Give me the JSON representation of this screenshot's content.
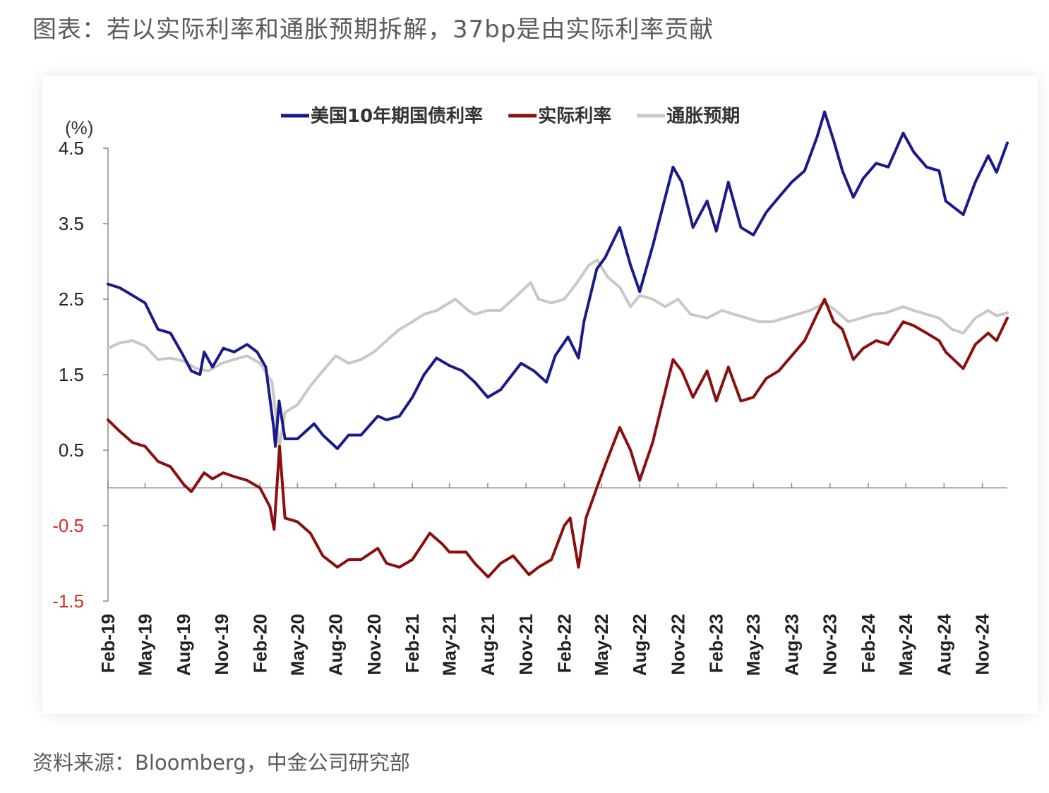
{
  "page": {
    "title": "图表：若以实际利率和通胀预期拆解，37bp是由实际利率贡献",
    "source": "资料来源：Bloomberg，中金公司研究部"
  },
  "chart_data": {
    "type": "line",
    "unit_label": "(%)",
    "ylim": [
      -1.5,
      4.5
    ],
    "y_ticks": [
      "4.5",
      "3.5",
      "2.5",
      "1.5",
      "0.5",
      "-0.5",
      "-1.5"
    ],
    "x_tick_labels": [
      "Feb-19",
      "May-19",
      "Aug-19",
      "Nov-19",
      "Feb-20",
      "May-20",
      "Aug-20",
      "Nov-20",
      "Feb-21",
      "May-21",
      "Aug-21",
      "Nov-21",
      "Feb-22",
      "May-22",
      "Aug-22",
      "Nov-22",
      "Feb-23",
      "May-23",
      "Aug-23",
      "Nov-23",
      "Feb-24",
      "May-24",
      "Aug-24",
      "Nov-24"
    ],
    "legend_position": "top-center",
    "grid": false,
    "colors": {
      "nominal": "#1a1a8c",
      "real": "#8b0f0f",
      "breakeven": "#c8c8c8",
      "negative_tick": "#d62b2b",
      "positive_tick": "#222222"
    },
    "series": [
      {
        "key": "nominal",
        "name": "美国10年期国债利率",
        "points": [
          [
            "2019-02-01",
            2.7
          ],
          [
            "2019-03-01",
            2.65
          ],
          [
            "2019-04-01",
            2.55
          ],
          [
            "2019-05-01",
            2.45
          ],
          [
            "2019-06-01",
            2.1
          ],
          [
            "2019-07-01",
            2.05
          ],
          [
            "2019-08-01",
            1.75
          ],
          [
            "2019-08-20",
            1.55
          ],
          [
            "2019-09-10",
            1.5
          ],
          [
            "2019-09-20",
            1.8
          ],
          [
            "2019-10-10",
            1.6
          ],
          [
            "2019-11-05",
            1.85
          ],
          [
            "2019-12-01",
            1.8
          ],
          [
            "2020-01-01",
            1.9
          ],
          [
            "2020-01-25",
            1.8
          ],
          [
            "2020-02-15",
            1.6
          ],
          [
            "2020-03-05",
            0.8
          ],
          [
            "2020-03-09",
            0.55
          ],
          [
            "2020-03-18",
            1.15
          ],
          [
            "2020-04-01",
            0.65
          ],
          [
            "2020-05-01",
            0.65
          ],
          [
            "2020-06-10",
            0.85
          ],
          [
            "2020-07-01",
            0.7
          ],
          [
            "2020-08-05",
            0.52
          ],
          [
            "2020-09-01",
            0.7
          ],
          [
            "2020-10-01",
            0.7
          ],
          [
            "2020-11-10",
            0.95
          ],
          [
            "2020-12-01",
            0.9
          ],
          [
            "2021-01-01",
            0.95
          ],
          [
            "2021-02-01",
            1.2
          ],
          [
            "2021-03-01",
            1.5
          ],
          [
            "2021-03-31",
            1.72
          ],
          [
            "2021-05-01",
            1.62
          ],
          [
            "2021-06-01",
            1.55
          ],
          [
            "2021-07-01",
            1.4
          ],
          [
            "2021-08-01",
            1.2
          ],
          [
            "2021-09-01",
            1.3
          ],
          [
            "2021-10-20",
            1.65
          ],
          [
            "2021-11-20",
            1.55
          ],
          [
            "2021-12-20",
            1.4
          ],
          [
            "2022-01-10",
            1.75
          ],
          [
            "2022-02-10",
            2.0
          ],
          [
            "2022-03-07",
            1.72
          ],
          [
            "2022-03-20",
            2.2
          ],
          [
            "2022-04-20",
            2.9
          ],
          [
            "2022-05-10",
            3.05
          ],
          [
            "2022-06-14",
            3.45
          ],
          [
            "2022-07-10",
            2.95
          ],
          [
            "2022-08-01",
            2.6
          ],
          [
            "2022-09-01",
            3.2
          ],
          [
            "2022-10-20",
            4.25
          ],
          [
            "2022-11-10",
            4.05
          ],
          [
            "2022-12-07",
            3.45
          ],
          [
            "2023-01-10",
            3.8
          ],
          [
            "2023-02-01",
            3.4
          ],
          [
            "2023-03-02",
            4.05
          ],
          [
            "2023-04-01",
            3.45
          ],
          [
            "2023-05-01",
            3.35
          ],
          [
            "2023-06-01",
            3.65
          ],
          [
            "2023-07-01",
            3.85
          ],
          [
            "2023-08-01",
            4.05
          ],
          [
            "2023-09-01",
            4.2
          ],
          [
            "2023-10-01",
            4.65
          ],
          [
            "2023-10-19",
            4.98
          ],
          [
            "2023-11-10",
            4.6
          ],
          [
            "2023-12-01",
            4.2
          ],
          [
            "2023-12-27",
            3.85
          ],
          [
            "2024-01-20",
            4.1
          ],
          [
            "2024-02-20",
            4.3
          ],
          [
            "2024-03-20",
            4.25
          ],
          [
            "2024-04-25",
            4.7
          ],
          [
            "2024-05-20",
            4.45
          ],
          [
            "2024-06-20",
            4.25
          ],
          [
            "2024-07-20",
            4.2
          ],
          [
            "2024-08-05",
            3.8
          ],
          [
            "2024-09-16",
            3.62
          ],
          [
            "2024-10-15",
            4.05
          ],
          [
            "2024-11-15",
            4.4
          ],
          [
            "2024-12-05",
            4.18
          ],
          [
            "2024-12-31",
            4.57
          ]
        ]
      },
      {
        "key": "real",
        "name": "实际利率",
        "points": [
          [
            "2019-02-01",
            0.9
          ],
          [
            "2019-03-01",
            0.75
          ],
          [
            "2019-04-01",
            0.6
          ],
          [
            "2019-05-01",
            0.55
          ],
          [
            "2019-06-01",
            0.35
          ],
          [
            "2019-07-01",
            0.28
          ],
          [
            "2019-08-01",
            0.05
          ],
          [
            "2019-08-20",
            -0.05
          ],
          [
            "2019-09-20",
            0.2
          ],
          [
            "2019-10-10",
            0.12
          ],
          [
            "2019-11-05",
            0.2
          ],
          [
            "2019-12-01",
            0.15
          ],
          [
            "2020-01-01",
            0.1
          ],
          [
            "2020-02-01",
            0.0
          ],
          [
            "2020-02-25",
            -0.25
          ],
          [
            "2020-03-06",
            -0.55
          ],
          [
            "2020-03-19",
            0.55
          ],
          [
            "2020-04-01",
            -0.4
          ],
          [
            "2020-05-01",
            -0.45
          ],
          [
            "2020-06-01",
            -0.6
          ],
          [
            "2020-07-01",
            -0.9
          ],
          [
            "2020-08-05",
            -1.05
          ],
          [
            "2020-09-01",
            -0.95
          ],
          [
            "2020-10-01",
            -0.95
          ],
          [
            "2020-11-10",
            -0.8
          ],
          [
            "2020-12-01",
            -1.0
          ],
          [
            "2021-01-01",
            -1.05
          ],
          [
            "2021-02-01",
            -0.95
          ],
          [
            "2021-03-15",
            -0.6
          ],
          [
            "2021-04-15",
            -0.75
          ],
          [
            "2021-05-01",
            -0.85
          ],
          [
            "2021-06-10",
            -0.85
          ],
          [
            "2021-07-01",
            -1.0
          ],
          [
            "2021-08-02",
            -1.18
          ],
          [
            "2021-09-01",
            -1.0
          ],
          [
            "2021-10-01",
            -0.9
          ],
          [
            "2021-11-08",
            -1.15
          ],
          [
            "2021-12-01",
            -1.05
          ],
          [
            "2022-01-01",
            -0.95
          ],
          [
            "2022-02-01",
            -0.5
          ],
          [
            "2022-02-15",
            -0.4
          ],
          [
            "2022-03-07",
            -1.05
          ],
          [
            "2022-03-25",
            -0.4
          ],
          [
            "2022-04-20",
            0.0
          ],
          [
            "2022-05-10",
            0.3
          ],
          [
            "2022-06-14",
            0.8
          ],
          [
            "2022-07-10",
            0.5
          ],
          [
            "2022-08-01",
            0.1
          ],
          [
            "2022-09-01",
            0.6
          ],
          [
            "2022-10-20",
            1.7
          ],
          [
            "2022-11-10",
            1.55
          ],
          [
            "2022-12-07",
            1.2
          ],
          [
            "2023-01-10",
            1.55
          ],
          [
            "2023-02-01",
            1.15
          ],
          [
            "2023-03-02",
            1.6
          ],
          [
            "2023-04-01",
            1.15
          ],
          [
            "2023-05-01",
            1.2
          ],
          [
            "2023-06-01",
            1.45
          ],
          [
            "2023-07-01",
            1.55
          ],
          [
            "2023-08-01",
            1.75
          ],
          [
            "2023-09-01",
            1.95
          ],
          [
            "2023-10-01",
            2.3
          ],
          [
            "2023-10-19",
            2.5
          ],
          [
            "2023-11-10",
            2.2
          ],
          [
            "2023-12-01",
            2.1
          ],
          [
            "2023-12-27",
            1.7
          ],
          [
            "2024-01-20",
            1.85
          ],
          [
            "2024-02-20",
            1.95
          ],
          [
            "2024-03-20",
            1.9
          ],
          [
            "2024-04-25",
            2.2
          ],
          [
            "2024-05-20",
            2.15
          ],
          [
            "2024-06-20",
            2.05
          ],
          [
            "2024-07-20",
            1.95
          ],
          [
            "2024-08-05",
            1.8
          ],
          [
            "2024-09-16",
            1.58
          ],
          [
            "2024-10-15",
            1.9
          ],
          [
            "2024-11-15",
            2.05
          ],
          [
            "2024-12-05",
            1.95
          ],
          [
            "2024-12-31",
            2.25
          ]
        ]
      },
      {
        "key": "breakeven",
        "name": "通胀预期",
        "points": [
          [
            "2019-02-01",
            1.85
          ],
          [
            "2019-03-01",
            1.92
          ],
          [
            "2019-04-01",
            1.95
          ],
          [
            "2019-05-01",
            1.88
          ],
          [
            "2019-06-01",
            1.7
          ],
          [
            "2019-07-01",
            1.72
          ],
          [
            "2019-08-01",
            1.68
          ],
          [
            "2019-09-01",
            1.58
          ],
          [
            "2019-10-01",
            1.55
          ],
          [
            "2019-11-01",
            1.65
          ],
          [
            "2019-12-01",
            1.7
          ],
          [
            "2020-01-01",
            1.75
          ],
          [
            "2020-02-01",
            1.65
          ],
          [
            "2020-03-01",
            1.4
          ],
          [
            "2020-03-19",
            0.55
          ],
          [
            "2020-04-01",
            1.0
          ],
          [
            "2020-05-01",
            1.1
          ],
          [
            "2020-06-01",
            1.35
          ],
          [
            "2020-07-01",
            1.55
          ],
          [
            "2020-08-01",
            1.75
          ],
          [
            "2020-09-01",
            1.65
          ],
          [
            "2020-10-01",
            1.7
          ],
          [
            "2020-11-01",
            1.8
          ],
          [
            "2020-12-01",
            1.95
          ],
          [
            "2021-01-01",
            2.1
          ],
          [
            "2021-02-01",
            2.2
          ],
          [
            "2021-03-01",
            2.3
          ],
          [
            "2021-04-01",
            2.35
          ],
          [
            "2021-05-15",
            2.5
          ],
          [
            "2021-06-15",
            2.35
          ],
          [
            "2021-07-01",
            2.3
          ],
          [
            "2021-08-01",
            2.35
          ],
          [
            "2021-09-01",
            2.35
          ],
          [
            "2021-10-01",
            2.5
          ],
          [
            "2021-11-12",
            2.72
          ],
          [
            "2021-12-01",
            2.5
          ],
          [
            "2022-01-01",
            2.45
          ],
          [
            "2022-02-01",
            2.5
          ],
          [
            "2022-03-01",
            2.7
          ],
          [
            "2022-04-01",
            2.95
          ],
          [
            "2022-04-21",
            3.02
          ],
          [
            "2022-05-15",
            2.8
          ],
          [
            "2022-06-15",
            2.65
          ],
          [
            "2022-07-10",
            2.4
          ],
          [
            "2022-08-01",
            2.55
          ],
          [
            "2022-09-01",
            2.5
          ],
          [
            "2022-10-01",
            2.4
          ],
          [
            "2022-11-01",
            2.5
          ],
          [
            "2022-12-01",
            2.3
          ],
          [
            "2023-01-10",
            2.25
          ],
          [
            "2023-02-15",
            2.35
          ],
          [
            "2023-03-15",
            2.3
          ],
          [
            "2023-04-15",
            2.25
          ],
          [
            "2023-05-15",
            2.2
          ],
          [
            "2023-06-15",
            2.2
          ],
          [
            "2023-07-15",
            2.25
          ],
          [
            "2023-08-15",
            2.3
          ],
          [
            "2023-09-15",
            2.35
          ],
          [
            "2023-10-19",
            2.45
          ],
          [
            "2023-11-15",
            2.35
          ],
          [
            "2023-12-15",
            2.2
          ],
          [
            "2024-01-15",
            2.25
          ],
          [
            "2024-02-15",
            2.3
          ],
          [
            "2024-03-15",
            2.32
          ],
          [
            "2024-04-25",
            2.4
          ],
          [
            "2024-05-20",
            2.35
          ],
          [
            "2024-06-20",
            2.3
          ],
          [
            "2024-07-20",
            2.25
          ],
          [
            "2024-08-20",
            2.1
          ],
          [
            "2024-09-16",
            2.05
          ],
          [
            "2024-10-15",
            2.25
          ],
          [
            "2024-11-15",
            2.35
          ],
          [
            "2024-12-05",
            2.28
          ],
          [
            "2024-12-31",
            2.32
          ]
        ]
      }
    ]
  }
}
